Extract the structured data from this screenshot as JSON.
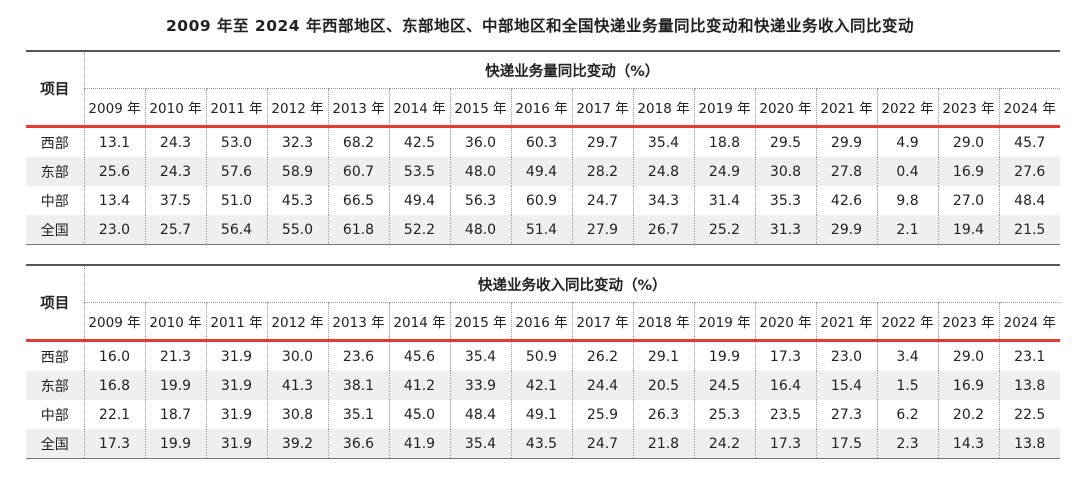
{
  "title": "2009 年至 2024 年西部地区、东部地区、中部地区和全国快递业务量同比变动和快递业务收入同比变动",
  "chart_data": [
    {
      "type": "table",
      "item_header": "项目",
      "group_header": "快递业务量同比变动（%）",
      "columns": [
        "2009 年",
        "2010 年",
        "2011 年",
        "2012 年",
        "2013 年",
        "2014 年",
        "2015 年",
        "2016 年",
        "2017 年",
        "2018 年",
        "2019 年",
        "2020 年",
        "2021 年",
        "2022 年",
        "2023 年",
        "2024 年"
      ],
      "rows": [
        {
          "label": "西部",
          "values": [
            "13.1",
            "24.3",
            "53.0",
            "32.3",
            "68.2",
            "42.5",
            "36.0",
            "60.3",
            "29.7",
            "35.4",
            "18.8",
            "29.5",
            "29.9",
            "4.9",
            "29.0",
            "45.7"
          ]
        },
        {
          "label": "东部",
          "values": [
            "25.6",
            "24.3",
            "57.6",
            "58.9",
            "60.7",
            "53.5",
            "48.0",
            "49.4",
            "28.2",
            "24.8",
            "24.9",
            "30.8",
            "27.8",
            "0.4",
            "16.9",
            "27.6"
          ]
        },
        {
          "label": "中部",
          "values": [
            "13.4",
            "37.5",
            "51.0",
            "45.3",
            "66.5",
            "49.4",
            "56.3",
            "60.9",
            "24.7",
            "34.3",
            "31.4",
            "35.3",
            "42.6",
            "9.8",
            "27.0",
            "48.4"
          ]
        },
        {
          "label": "全国",
          "values": [
            "23.0",
            "25.7",
            "56.4",
            "55.0",
            "61.8",
            "52.2",
            "48.0",
            "51.4",
            "27.9",
            "26.7",
            "25.2",
            "31.3",
            "29.9",
            "2.1",
            "19.4",
            "21.5"
          ]
        }
      ]
    },
    {
      "type": "table",
      "item_header": "项目",
      "group_header": "快递业务收入同比变动（%）",
      "columns": [
        "2009 年",
        "2010 年",
        "2011 年",
        "2012 年",
        "2013 年",
        "2014 年",
        "2015 年",
        "2016 年",
        "2017 年",
        "2018 年",
        "2019 年",
        "2020 年",
        "2021 年",
        "2022 年",
        "2023 年",
        "2024 年"
      ],
      "rows": [
        {
          "label": "西部",
          "values": [
            "16.0",
            "21.3",
            "31.9",
            "30.0",
            "23.6",
            "45.6",
            "35.4",
            "50.9",
            "26.2",
            "29.1",
            "19.9",
            "17.3",
            "23.0",
            "3.4",
            "29.0",
            "23.1"
          ]
        },
        {
          "label": "东部",
          "values": [
            "16.8",
            "19.9",
            "31.9",
            "41.3",
            "38.1",
            "41.2",
            "33.9",
            "42.1",
            "24.4",
            "20.5",
            "24.5",
            "16.4",
            "15.4",
            "1.5",
            "16.9",
            "13.8"
          ]
        },
        {
          "label": "中部",
          "values": [
            "22.1",
            "18.7",
            "31.9",
            "30.8",
            "35.1",
            "45.0",
            "48.4",
            "49.1",
            "25.9",
            "26.3",
            "25.3",
            "23.5",
            "27.3",
            "6.2",
            "20.2",
            "22.5"
          ]
        },
        {
          "label": "全国",
          "values": [
            "17.3",
            "19.9",
            "31.9",
            "39.2",
            "36.6",
            "41.9",
            "35.4",
            "43.5",
            "24.7",
            "21.8",
            "24.2",
            "17.3",
            "17.5",
            "2.3",
            "14.3",
            "13.8"
          ]
        }
      ]
    }
  ]
}
